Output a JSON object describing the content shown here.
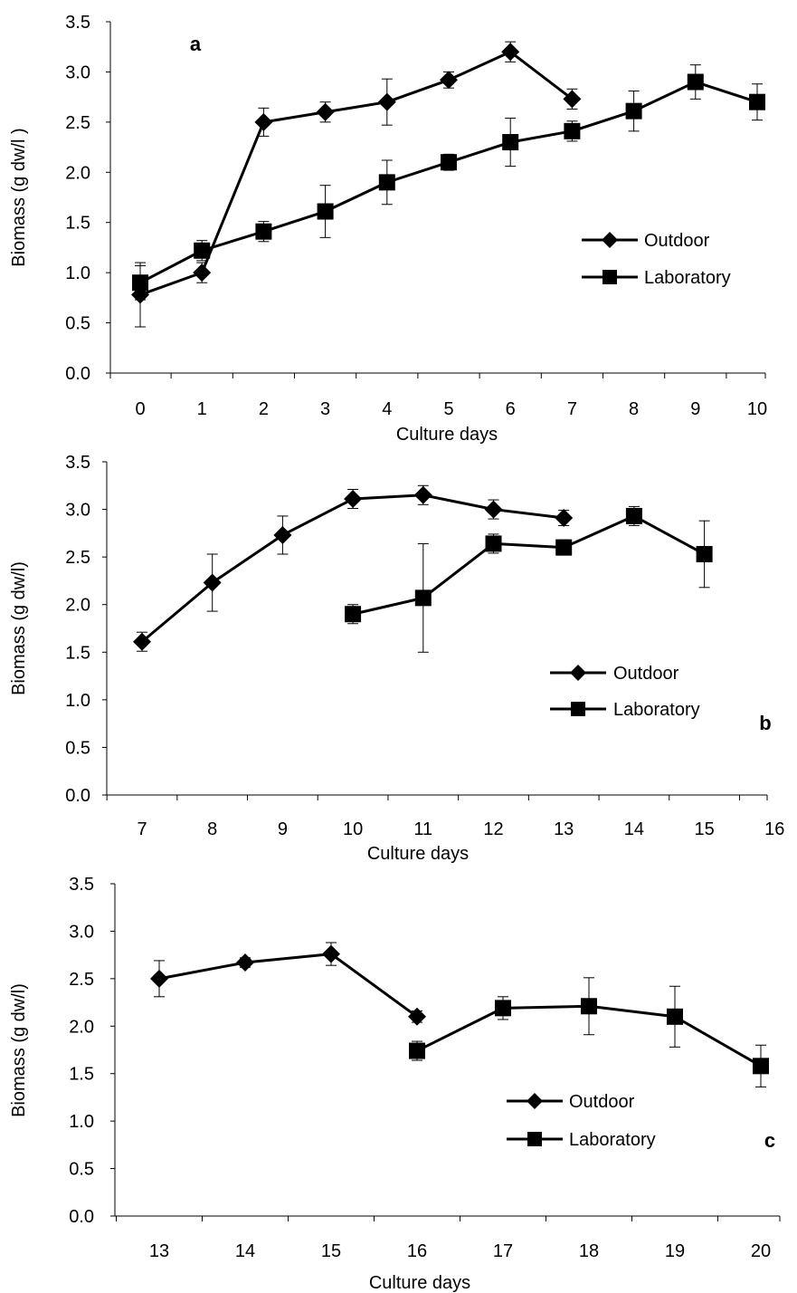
{
  "chart_data": [
    {
      "type": "line",
      "panel_label": "a",
      "title": "",
      "xlabel": "Culture days",
      "ylabel": "Biomass (g dw/l )",
      "x_ticks": [
        "0",
        "1",
        "2",
        "3",
        "4",
        "5",
        "6",
        "7",
        "8",
        "9",
        "10"
      ],
      "y_ticks": [
        "0.0",
        "0.5",
        "1.0",
        "1.5",
        "2.0",
        "2.5",
        "3.0",
        "3.5"
      ],
      "xlim": [
        0,
        10
      ],
      "ylim": [
        0,
        3.5
      ],
      "legend_position": "middle-right",
      "series": [
        {
          "name": "Outdoor",
          "marker": "diamond",
          "x": [
            0,
            1,
            2,
            3,
            4,
            5,
            6,
            7
          ],
          "values": [
            0.78,
            1.0,
            2.5,
            2.6,
            2.7,
            2.92,
            3.2,
            2.73
          ],
          "errors": [
            0.32,
            0.1,
            0.14,
            0.1,
            0.23,
            0.08,
            0.1,
            0.1
          ]
        },
        {
          "name": "Laboratory",
          "marker": "square",
          "x": [
            0,
            1,
            2,
            3,
            4,
            5,
            6,
            7,
            8,
            9,
            10
          ],
          "values": [
            0.9,
            1.22,
            1.41,
            1.61,
            1.9,
            2.1,
            2.3,
            2.41,
            2.61,
            2.9,
            2.7
          ],
          "errors": [
            0.17,
            0.1,
            0.1,
            0.26,
            0.22,
            0.08,
            0.24,
            0.1,
            0.2,
            0.17,
            0.18
          ]
        }
      ]
    },
    {
      "type": "line",
      "panel_label": "b",
      "title": "",
      "xlabel": "Culture days",
      "ylabel": "Biomass (g dw/l)",
      "x_ticks": [
        "7",
        "8",
        "9",
        "10",
        "11",
        "12",
        "13",
        "14",
        "15",
        "16"
      ],
      "y_ticks": [
        "0.0",
        "0.5",
        "1.0",
        "1.5",
        "2.0",
        "2.5",
        "3.0",
        "3.5"
      ],
      "xlim": [
        7,
        16
      ],
      "ylim": [
        0,
        3.5
      ],
      "legend_position": "middle-right",
      "series": [
        {
          "name": "Outdoor",
          "marker": "diamond",
          "x": [
            7,
            8,
            9,
            10,
            11,
            12,
            13
          ],
          "values": [
            1.61,
            2.23,
            2.73,
            3.11,
            3.15,
            3.0,
            2.91
          ],
          "errors": [
            0.1,
            0.3,
            0.2,
            0.1,
            0.1,
            0.1,
            0.08
          ]
        },
        {
          "name": "Laboratory",
          "marker": "square",
          "x": [
            10,
            11,
            12,
            13,
            14,
            15
          ],
          "values": [
            1.9,
            2.07,
            2.64,
            2.6,
            2.93,
            2.53
          ],
          "errors": [
            0.1,
            0.57,
            0.1,
            0.08,
            0.1,
            0.35
          ]
        }
      ]
    },
    {
      "type": "line",
      "panel_label": "c",
      "title": "",
      "xlabel": "Culture days",
      "ylabel": "Biomass (g dw/l)",
      "x_ticks": [
        "13",
        "14",
        "15",
        "16",
        "17",
        "18",
        "19",
        "20"
      ],
      "y_ticks": [
        "0.0",
        "0.5",
        "1.0",
        "1.5",
        "2.0",
        "2.5",
        "3.0",
        "3.5"
      ],
      "xlim": [
        13,
        20
      ],
      "ylim": [
        0,
        3.5
      ],
      "legend_position": "middle-right",
      "series": [
        {
          "name": "Outdoor",
          "marker": "diamond",
          "x": [
            13,
            14,
            15,
            16
          ],
          "values": [
            2.5,
            2.67,
            2.76,
            2.1
          ],
          "errors": [
            0.19,
            0.05,
            0.12,
            0.06
          ]
        },
        {
          "name": "Laboratory",
          "marker": "square",
          "x": [
            16,
            17,
            18,
            19,
            20
          ],
          "values": [
            1.74,
            2.19,
            2.21,
            2.1,
            1.58
          ],
          "errors": [
            0.1,
            0.12,
            0.3,
            0.32,
            0.22
          ]
        }
      ]
    }
  ]
}
